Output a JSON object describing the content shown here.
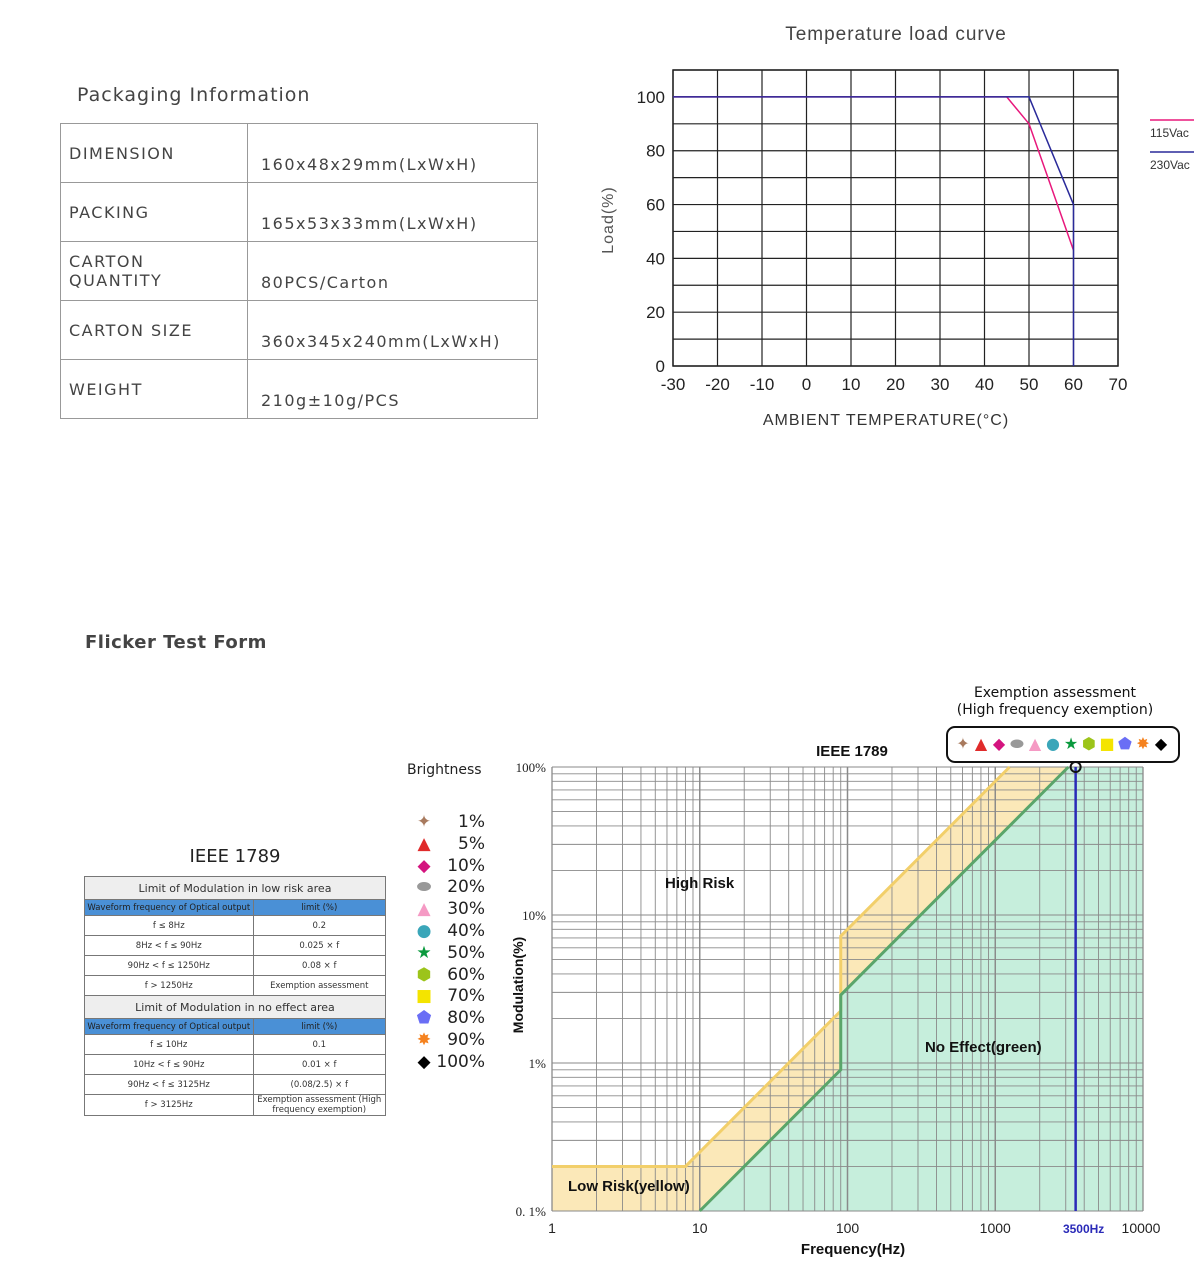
{
  "packaging": {
    "title": "Packaging Information",
    "rows": [
      {
        "label": "DIMENSION",
        "value": "160x48x29mm(LxWxH)"
      },
      {
        "label": "PACKING",
        "value": "165x53x33mm(LxWxH)"
      },
      {
        "label": "CARTON QUANTITY",
        "value": "80PCS/Carton"
      },
      {
        "label": "CARTON SIZE",
        "value": "360x345x240mm(LxWxH)"
      },
      {
        "label": "WEIGHT",
        "value": "210g±10g/PCS"
      }
    ]
  },
  "flicker": {
    "title": "Flicker Test Form",
    "ieee_title": "IEEE 1789",
    "low_risk": {
      "heading": "Limit of Modulation in low risk area",
      "col_headers": [
        "Waveform frequency of Optical output",
        "limit (%)"
      ],
      "rows": [
        [
          "f ≤ 8Hz",
          "0.2"
        ],
        [
          "8Hz < f ≤ 90Hz",
          "0.025 × f"
        ],
        [
          "90Hz < f ≤ 1250Hz",
          "0.08 × f"
        ],
        [
          "f > 1250Hz",
          "Exemption assessment"
        ]
      ]
    },
    "no_effect": {
      "heading": "Limit of Modulation in no effect area",
      "col_headers": [
        "Waveform frequency of Optical output",
        "limit (%)"
      ],
      "rows": [
        [
          "f ≤ 10Hz",
          "0.1"
        ],
        [
          "10Hz < f ≤ 90Hz",
          "0.01 × f"
        ],
        [
          "90Hz < f ≤ 3125Hz",
          "(0.08/2.5) × f"
        ],
        [
          "f > 3125Hz",
          "Exemption assessment (High frequency exemption)"
        ]
      ]
    },
    "brightness": {
      "title": "Brightness",
      "items": [
        {
          "label": "1%",
          "icon": "four-point-star",
          "color": "#a87a5e"
        },
        {
          "label": "5%",
          "icon": "triangle",
          "color": "#e02b2b"
        },
        {
          "label": "10%",
          "icon": "diamond",
          "color": "#d4147f"
        },
        {
          "label": "20%",
          "icon": "ellipse",
          "color": "#999999"
        },
        {
          "label": "30%",
          "icon": "triangle",
          "color": "#f59ac4"
        },
        {
          "label": "40%",
          "icon": "circle",
          "color": "#3aa6b9"
        },
        {
          "label": "50%",
          "icon": "star",
          "color": "#0a9a3e"
        },
        {
          "label": "60%",
          "icon": "hexagon",
          "color": "#9cc41a"
        },
        {
          "label": "70%",
          "icon": "square",
          "color": "#f4e400"
        },
        {
          "label": "80%",
          "icon": "pentagon",
          "color": "#6a6ef5"
        },
        {
          "label": "90%",
          "icon": "burst-star",
          "color": "#f5821f"
        },
        {
          "label": "100%",
          "icon": "diamond",
          "color": "#000000"
        }
      ]
    },
    "exemption": {
      "line1": "Exemption assessment",
      "line2": "(High frequency exemption)"
    }
  },
  "chart_data": [
    {
      "type": "line",
      "title": "Temperature load curve",
      "xlabel": "AMBIENT TEMPERATURE(°C)",
      "ylabel": "Load(%)",
      "xlim": [
        -30,
        70
      ],
      "ylim": [
        0,
        110
      ],
      "xticks": [
        -30,
        -20,
        -10,
        0,
        10,
        20,
        30,
        40,
        50,
        60,
        70
      ],
      "yticks": [
        0,
        20,
        40,
        60,
        80,
        100
      ],
      "grid": true,
      "legend": "right",
      "series": [
        {
          "name": "115Vac",
          "color": "#e8187c",
          "points": [
            [
              -30,
              100
            ],
            [
              45,
              100
            ],
            [
              50,
              90
            ],
            [
              60,
              43
            ]
          ]
        },
        {
          "name": "230Vac",
          "color": "#2a2a9a",
          "points": [
            [
              -30,
              100
            ],
            [
              50,
              100
            ],
            [
              60,
              60
            ],
            [
              60,
              0
            ]
          ]
        }
      ]
    },
    {
      "type": "area",
      "title": "IEEE 1789",
      "xlabel": "Frequency(Hz)",
      "ylabel": "Modulation(%)",
      "xscale": "log",
      "yscale": "log",
      "xlim": [
        1,
        10000
      ],
      "ylim": [
        0.1,
        100
      ],
      "xticks": [
        "1",
        "10",
        "100",
        "1000",
        "10000"
      ],
      "yticks": [
        "0. 1%",
        "1%",
        "10%",
        "100%"
      ],
      "grid": true,
      "regions": [
        {
          "name": "Low Risk(yellow)",
          "color": "#fbe8b8",
          "line_color": "#f2cf6a",
          "boundary": [
            [
              1,
              0.2
            ],
            [
              8,
              0.2
            ],
            [
              90,
              2.25
            ],
            [
              90,
              7.2
            ],
            [
              1250,
              100
            ]
          ]
        },
        {
          "name": "No Effect(green)",
          "color": "#c6eedc",
          "line_color": "#5aa56a",
          "boundary": [
            [
              10,
              0.1
            ],
            [
              90,
              0.9
            ],
            [
              90,
              2.88
            ],
            [
              3125,
              100
            ]
          ]
        }
      ],
      "annotations": [
        "High Risk"
      ],
      "marker": {
        "label": "3500Hz",
        "x": 3500,
        "color": "#2a2ab8"
      }
    }
  ]
}
